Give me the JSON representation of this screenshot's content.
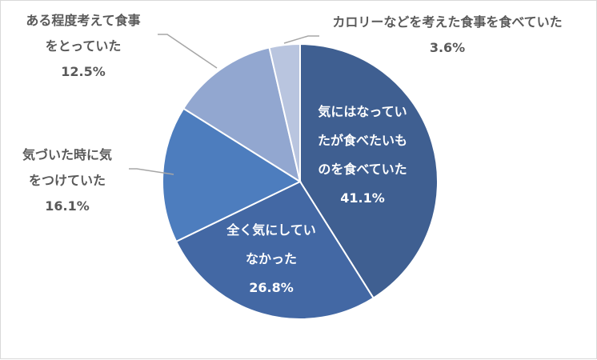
{
  "chart_data": {
    "type": "pie",
    "start_angle_deg": 0,
    "direction": "clockwise",
    "colors": [
      "#3f5f91",
      "#4368a4",
      "#4d7dbe",
      "#92a7d0",
      "#b9c5df"
    ],
    "slices": [
      {
        "label_lines": [
          "気にはなってい",
          "たが食べたいも",
          "のを食べていた"
        ],
        "value": 41.1,
        "pct": "41.1%"
      },
      {
        "label_lines": [
          "全く気にしてい",
          "なかった"
        ],
        "value": 26.8,
        "pct": "26.8%"
      },
      {
        "label_lines": [
          "気づいた時に気",
          "をつけていた"
        ],
        "value": 16.1,
        "pct": "16.1%"
      },
      {
        "label_lines": [
          "ある程度考えて食事",
          "をとっていた"
        ],
        "value": 12.5,
        "pct": "12.5%"
      },
      {
        "label_lines": [
          "カロリーなどを考えた食事を食べていた"
        ],
        "value": 3.6,
        "pct": "3.6%"
      }
    ]
  }
}
